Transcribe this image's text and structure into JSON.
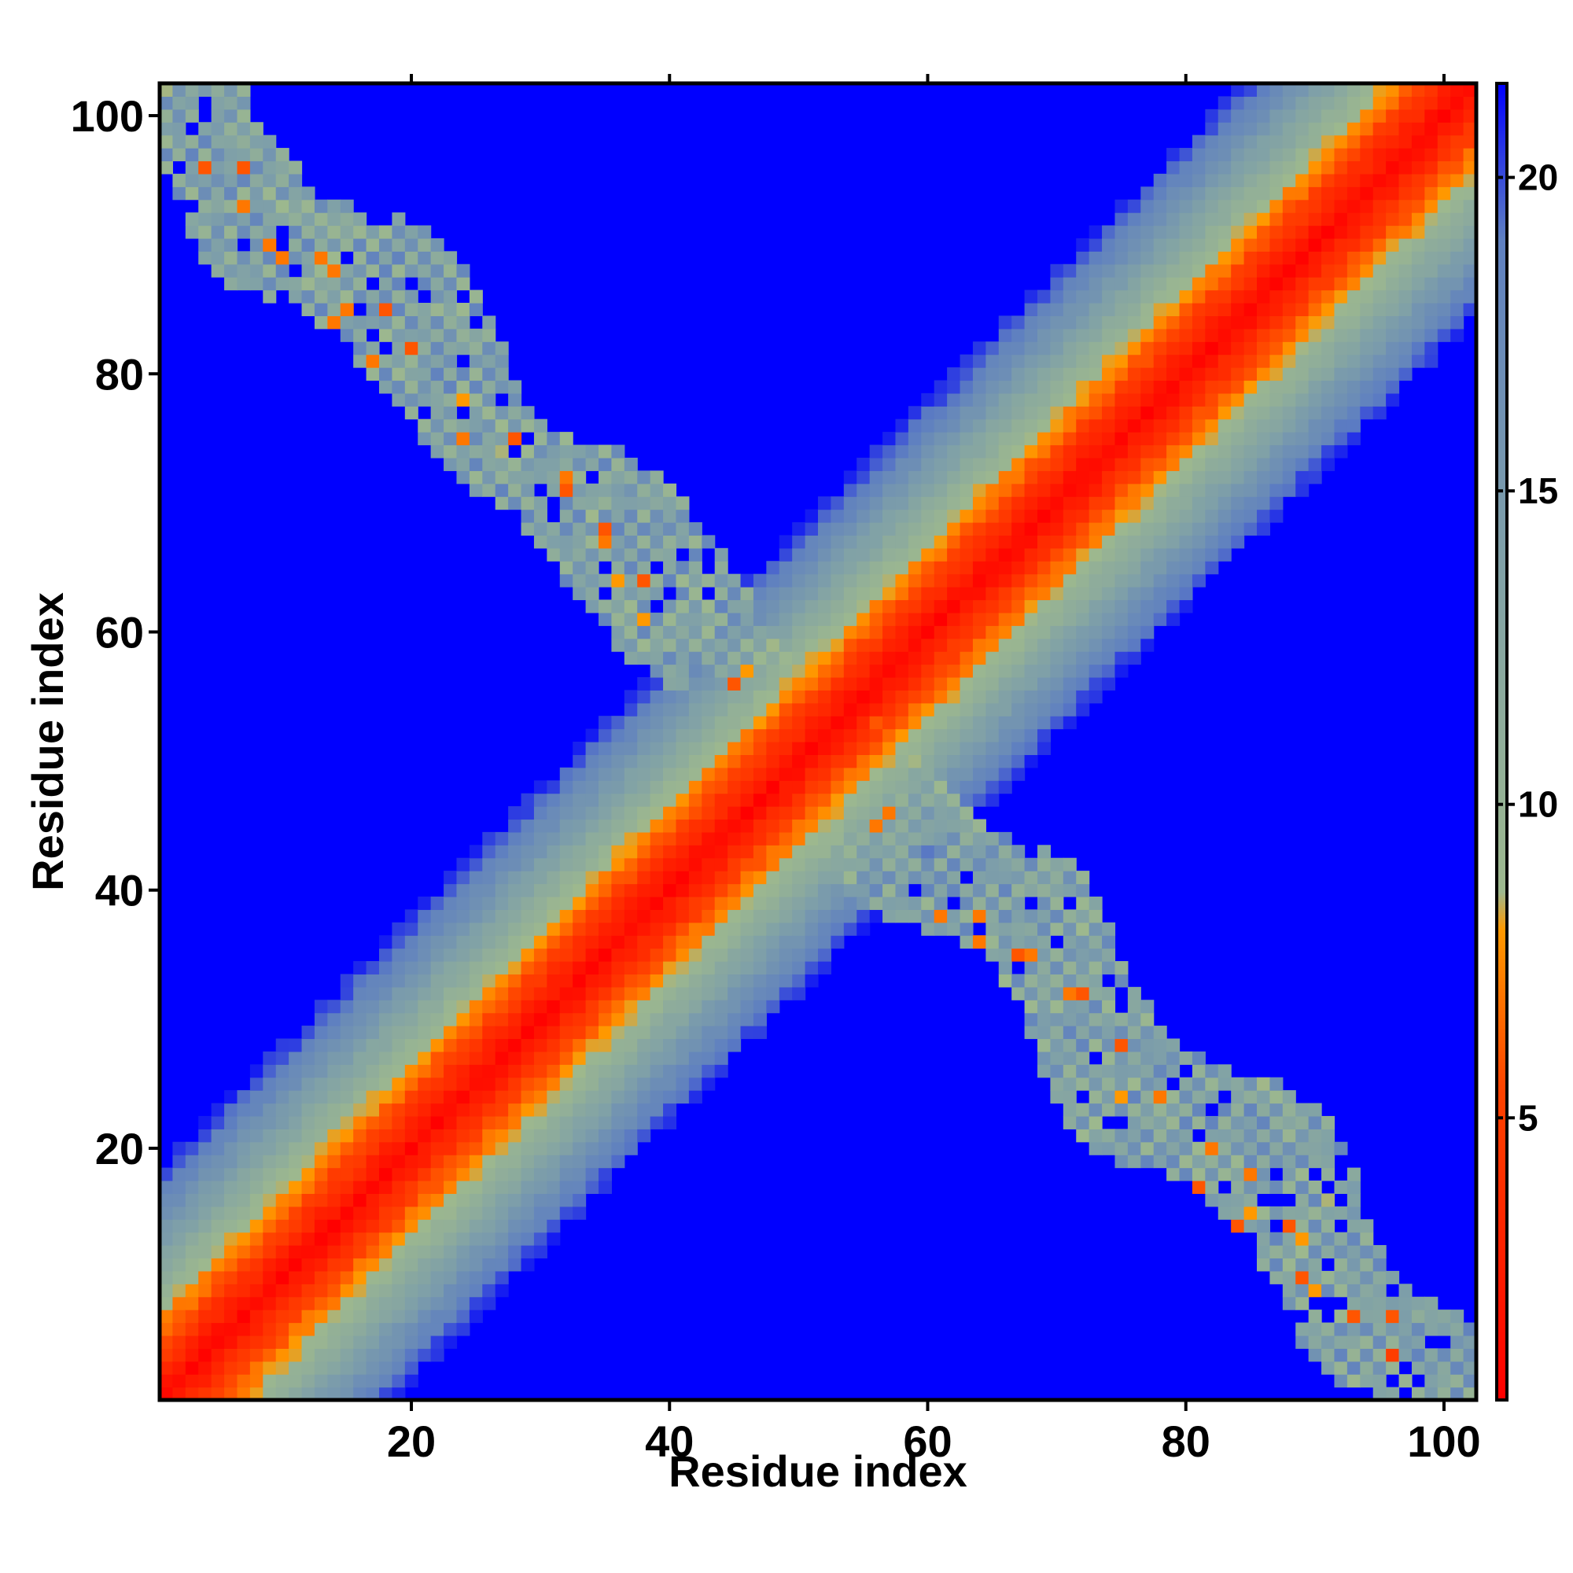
{
  "chart_data": {
    "type": "heatmap",
    "title": "",
    "xlabel": "Residue index",
    "ylabel": "Residue index",
    "x_range": [
      1,
      102
    ],
    "y_range": [
      1,
      102
    ],
    "xlim": [
      0.5,
      102.5
    ],
    "ylim": [
      0.5,
      102.5
    ],
    "x_ticks": [
      20,
      40,
      60,
      80,
      100
    ],
    "y_ticks": [
      20,
      40,
      60,
      80,
      100
    ],
    "colorbar": {
      "ticks": [
        5,
        10,
        15,
        20
      ],
      "range": [
        0.5,
        21.5
      ],
      "scale": [
        {
          "value": 0.5,
          "color": "#ff0000"
        },
        {
          "value": 5.5,
          "color": "#ff4400"
        },
        {
          "value": 8.0,
          "color": "#ff9900"
        },
        {
          "value": 8.6,
          "color": "#9db88e"
        },
        {
          "value": 14.0,
          "color": "#7fa0a8"
        },
        {
          "value": 19.0,
          "color": "#5f80c0"
        },
        {
          "value": 21.5,
          "color": "#0000ff"
        }
      ]
    },
    "background_color": "#0000ff",
    "grid": false,
    "legend": "colorbar-right",
    "diagonal_band": {
      "description": "distance grows with |i-j|",
      "value_at_zero_separation": 1,
      "slope_per_residue": 1.1,
      "cutoff": 21
    },
    "anti_diagonal_contacts": {
      "pair_sum": 103,
      "typical_value": 14,
      "min_value": 6,
      "max_value": 21,
      "half_width_residues": 7
    },
    "strongest_contacts": [
      {
        "x": 4,
        "y": 96,
        "value": 6
      },
      {
        "x": 7,
        "y": 96,
        "value": 6
      },
      {
        "x": 9,
        "y": 90,
        "value": 7
      },
      {
        "x": 13,
        "y": 89,
        "value": 7
      },
      {
        "x": 15,
        "y": 85,
        "value": 7
      },
      {
        "x": 18,
        "y": 85,
        "value": 6
      },
      {
        "x": 20,
        "y": 82,
        "value": 6
      },
      {
        "x": 24,
        "y": 75,
        "value": 7
      },
      {
        "x": 28,
        "y": 75,
        "value": 6
      },
      {
        "x": 32,
        "y": 71,
        "value": 6
      },
      {
        "x": 35,
        "y": 68,
        "value": 6
      },
      {
        "x": 38,
        "y": 64,
        "value": 6
      },
      {
        "x": 45,
        "y": 56,
        "value": 6
      },
      {
        "x": 46,
        "y": 52,
        "value": 7
      },
      {
        "x": 53,
        "y": 57,
        "value": 6
      },
      {
        "x": 56,
        "y": 53,
        "value": 6
      },
      {
        "x": 57,
        "y": 46,
        "value": 7
      },
      {
        "x": 61,
        "y": 38,
        "value": 7
      },
      {
        "x": 64,
        "y": 36,
        "value": 7
      },
      {
        "x": 67,
        "y": 35,
        "value": 6
      },
      {
        "x": 72,
        "y": 32,
        "value": 6
      },
      {
        "x": 75,
        "y": 28,
        "value": 6
      },
      {
        "x": 78,
        "y": 24,
        "value": 7
      },
      {
        "x": 81,
        "y": 17,
        "value": 6
      },
      {
        "x": 84,
        "y": 14,
        "value": 6
      },
      {
        "x": 88,
        "y": 14,
        "value": 6
      },
      {
        "x": 89,
        "y": 10,
        "value": 6
      },
      {
        "x": 93,
        "y": 7,
        "value": 6
      },
      {
        "x": 96,
        "y": 7,
        "value": 6
      },
      {
        "x": 96,
        "y": 4,
        "value": 5
      }
    ]
  }
}
